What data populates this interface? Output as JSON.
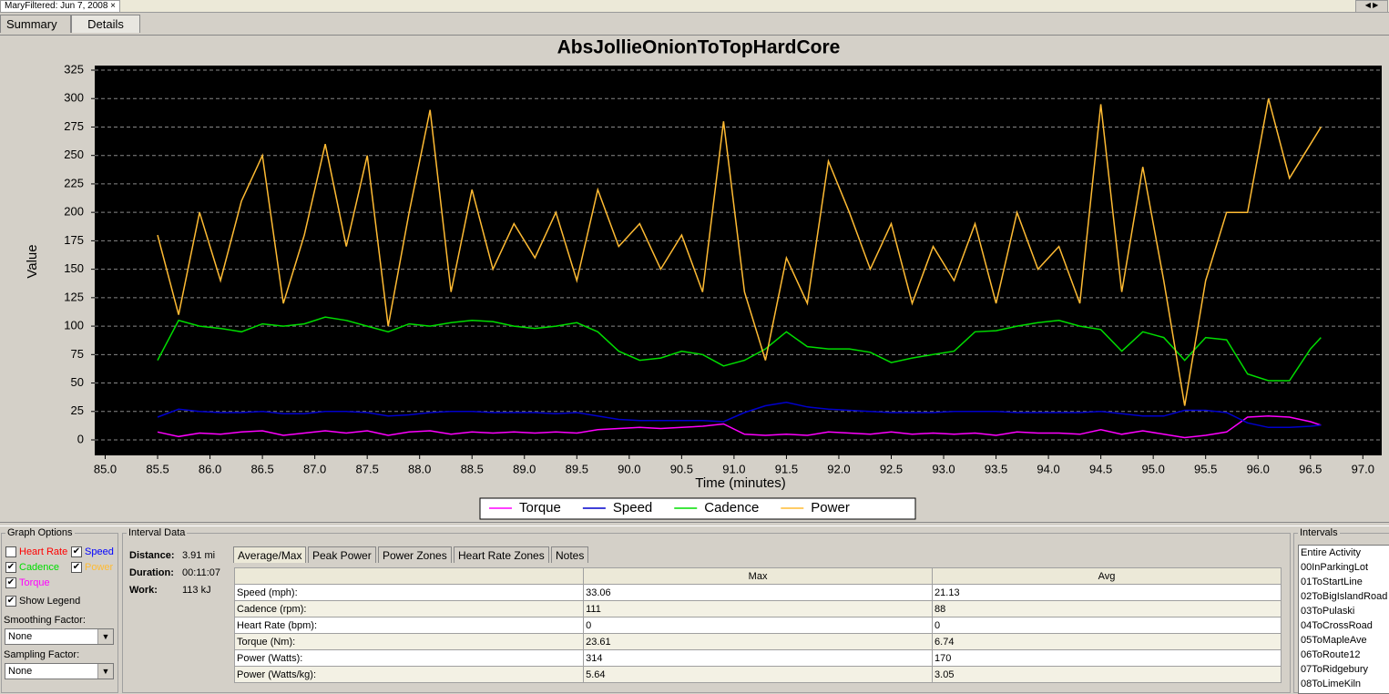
{
  "window": {
    "doc_tab": "MaryFiltered: Jun 7, 2008",
    "tabs": [
      "Summary",
      "Details"
    ]
  },
  "chart_data": {
    "type": "line",
    "title": "AbsJollieOnionToTopHardCore",
    "xlabel": "Time (minutes)",
    "ylabel": "Value",
    "x": [
      85.5,
      85.7,
      85.9,
      86.1,
      86.3,
      86.5,
      86.7,
      86.9,
      87.1,
      87.3,
      87.5,
      87.7,
      87.9,
      88.1,
      88.3,
      88.5,
      88.7,
      88.9,
      89.1,
      89.3,
      89.5,
      89.7,
      89.9,
      90.1,
      90.3,
      90.5,
      90.7,
      90.9,
      91.1,
      91.3,
      91.5,
      91.7,
      91.9,
      92.1,
      92.3,
      92.5,
      92.7,
      92.9,
      93.1,
      93.3,
      93.5,
      93.7,
      93.9,
      94.1,
      94.3,
      94.5,
      94.7,
      94.9,
      95.1,
      95.3,
      95.5,
      95.7,
      95.9,
      96.1,
      96.3,
      96.5,
      96.6
    ],
    "series": [
      {
        "name": "Torque",
        "color": "#ff00ff",
        "values": [
          7,
          3,
          6,
          5,
          7,
          8,
          4,
          6,
          8,
          6,
          8,
          4,
          7,
          8,
          5,
          7,
          6,
          7,
          6,
          7,
          6,
          9,
          10,
          11,
          10,
          11,
          12,
          14,
          5,
          4,
          5,
          4,
          7,
          6,
          5,
          7,
          5,
          6,
          5,
          6,
          4,
          7,
          6,
          6,
          5,
          9,
          5,
          8,
          5,
          2,
          4,
          7,
          20,
          21,
          20,
          16,
          13
        ]
      },
      {
        "name": "Speed",
        "color": "#0000cc",
        "values": [
          20,
          27,
          25,
          24,
          24,
          25,
          23,
          23,
          25,
          25,
          24,
          21,
          22,
          24,
          25,
          25,
          24,
          24,
          24,
          23,
          24,
          21,
          18,
          17,
          17,
          17,
          17,
          16,
          24,
          30,
          33,
          29,
          27,
          26,
          25,
          24,
          24,
          24,
          25,
          25,
          25,
          24,
          24,
          24,
          24,
          25,
          23,
          21,
          21,
          26,
          26,
          24,
          15,
          11,
          11,
          12,
          13
        ]
      },
      {
        "name": "Cadence",
        "color": "#00dd00",
        "values": [
          70,
          105,
          100,
          98,
          95,
          102,
          100,
          102,
          108,
          105,
          100,
          95,
          102,
          100,
          103,
          105,
          104,
          100,
          98,
          100,
          103,
          95,
          78,
          70,
          72,
          78,
          75,
          65,
          70,
          80,
          95,
          82,
          80,
          80,
          77,
          68,
          72,
          75,
          78,
          95,
          96,
          100,
          103,
          105,
          100,
          97,
          78,
          95,
          90,
          70,
          90,
          88,
          58,
          52,
          52,
          80,
          90
        ]
      },
      {
        "name": "Power",
        "color": "#ffbb33",
        "values": [
          180,
          110,
          200,
          140,
          210,
          250,
          120,
          180,
          260,
          170,
          250,
          100,
          200,
          290,
          130,
          220,
          150,
          190,
          160,
          200,
          140,
          220,
          170,
          190,
          150,
          180,
          130,
          280,
          130,
          70,
          160,
          120,
          245,
          200,
          150,
          190,
          120,
          170,
          140,
          190,
          120,
          200,
          150,
          170,
          120,
          295,
          130,
          240,
          140,
          30,
          140,
          200,
          200,
          300,
          230,
          260,
          275
        ]
      }
    ],
    "xlim": [
      84.9,
      97.18
    ],
    "ylim": [
      -13.6,
      329
    ],
    "xticks": [
      {
        "value": 85,
        "label": "85.0"
      },
      85.5,
      {
        "value": 86,
        "label": "86.0"
      },
      86.5,
      {
        "value": 87,
        "label": "87.0"
      },
      87.5,
      {
        "value": 88,
        "label": "88.0"
      },
      88.5,
      {
        "value": 89,
        "label": "89.0"
      },
      89.5,
      {
        "value": 90,
        "label": "90.0"
      },
      90.5,
      {
        "value": 91,
        "label": "91.0"
      },
      91.5,
      {
        "value": 92,
        "label": "92.0"
      },
      92.5,
      {
        "value": 93,
        "label": "93.0"
      },
      93.5,
      {
        "value": 94,
        "label": "94.0"
      },
      94.5,
      {
        "value": 95,
        "label": "95.0"
      },
      95.5,
      {
        "value": 96,
        "label": "96.0"
      },
      96.5,
      {
        "value": 97,
        "label": "97.0"
      }
    ],
    "yticks": [
      0,
      25,
      50,
      75,
      100,
      125,
      150,
      175,
      200,
      225,
      250,
      275,
      300,
      325
    ],
    "grid": true,
    "legend": "bottom"
  },
  "graph_options": {
    "title": "Graph Options",
    "checks": [
      {
        "label": "Heart Rate",
        "color": "#ff0000",
        "checked": false
      },
      {
        "label": "Speed",
        "color": "#0000ff",
        "checked": true
      },
      {
        "label": "Cadence",
        "color": "#00dd00",
        "checked": true
      },
      {
        "label": "Power",
        "color": "#ffbb33",
        "checked": true
      },
      {
        "label": "Torque",
        "color": "#ff00ff",
        "checked": true
      }
    ],
    "show_legend": {
      "label": "Show Legend",
      "checked": true
    },
    "smoothing_label": "Smoothing Factor:",
    "smoothing_value": "None",
    "sampling_label": "Sampling Factor:",
    "sampling_value": "None"
  },
  "interval_data": {
    "title": "Interval Data",
    "fields": [
      {
        "label": "Distance:",
        "value": "3.91 mi"
      },
      {
        "label": "Duration:",
        "value": "00:11:07"
      },
      {
        "label": "Work:",
        "value": "113  kJ"
      }
    ],
    "tabs": [
      "Average/Max",
      "Peak Power",
      "Power Zones",
      "Heart Rate Zones",
      "Notes"
    ],
    "table": {
      "columns": [
        "Max",
        "Avg"
      ],
      "rows": [
        [
          "Speed (mph):",
          "33.06",
          "21.13"
        ],
        [
          "Cadence (rpm):",
          "111",
          "88"
        ],
        [
          "Heart Rate (bpm):",
          "0",
          "0"
        ],
        [
          "Torque (Nm):",
          "23.61",
          "6.74"
        ],
        [
          "Power (Watts):",
          "314",
          "170"
        ],
        [
          "Power (Watts/kg):",
          "5.64",
          "3.05"
        ]
      ]
    }
  },
  "intervals": {
    "title": "Intervals",
    "items": [
      "Entire Activity",
      "00InParkingLot",
      "01ToStartLine",
      "02ToBigIslandRoad",
      "03ToPulaski",
      "04ToCrossRoad",
      "05ToMapleAve",
      "06ToRoute12",
      "07ToRidgebury",
      "08ToLimeKiln"
    ]
  }
}
